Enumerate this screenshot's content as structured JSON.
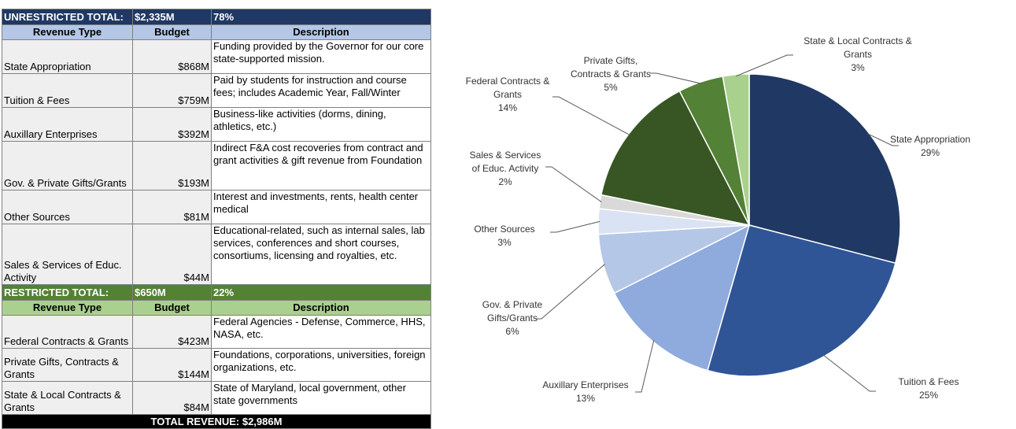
{
  "table": {
    "unrestricted": {
      "label": "UNRESTRICTED TOTAL:",
      "budget": "$2,335M",
      "pct": "78%"
    },
    "restricted": {
      "label": "RESTRICTED TOTAL:",
      "budget": "$650M",
      "pct": "22%"
    },
    "headers": {
      "type": "Revenue Type",
      "budget": "Budget",
      "desc": "Description"
    },
    "unrestricted_rows": [
      {
        "type": "State Appropriation",
        "budget": "$868M",
        "desc": "Funding provided by the Governor for our core state-supported mission."
      },
      {
        "type": "Tuition & Fees",
        "budget": "$759M",
        "desc": "Paid by students for instruction and course fees; includes Academic Year, Fall/Winter"
      },
      {
        "type": "Auxillary Enterprises",
        "budget": "$392M",
        "desc": "Business-like activities (dorms, dining, athletics, etc.)"
      },
      {
        "type": "Gov. & Private Gifts/Grants",
        "budget": "$193M",
        "desc": "Indirect F&A cost recoveries from contract and grant activities & gift revenue from Foundation"
      },
      {
        "type": "Other Sources",
        "budget": "$81M",
        "desc": "Interest and investments, rents, health center medical"
      },
      {
        "type": "Sales & Services of Educ. Activity",
        "budget": "$44M",
        "desc": "Educational-related, such as internal sales, lab services,  conferences and short courses, consortiums, licensing and royalties, etc."
      }
    ],
    "restricted_rows": [
      {
        "type": "Federal Contracts & Grants",
        "budget": "$423M",
        "desc": "Federal Agencies - Defense, Commerce, HHS, NASA, etc."
      },
      {
        "type": "Private Gifts, Contracts & Grants",
        "budget": "$144M",
        "desc": "Foundations, corporations, universities, foreign organizations, etc."
      },
      {
        "type": "State & Local Contracts & Grants",
        "budget": "$84M",
        "desc": "State of Maryland, local government, other state governments"
      }
    ],
    "total": "TOTAL REVENUE:  $2,986M"
  },
  "chart_data": {
    "type": "pie",
    "slices": [
      {
        "name": "State Appropriation",
        "value": 868,
        "pct": "29%",
        "color": "#203864"
      },
      {
        "name": "Tuition & Fees",
        "value": 759,
        "pct": "25%",
        "color": "#2f5597"
      },
      {
        "name": "Auxillary Enterprises",
        "value": 392,
        "pct": "13%",
        "color": "#8faadc"
      },
      {
        "name": "Gov. & Private Gifts/Grants",
        "value": 193,
        "pct": "6%",
        "color": "#b4c7e7"
      },
      {
        "name": "Other Sources",
        "value": 81,
        "pct": "3%",
        "color": "#dae3f3"
      },
      {
        "name": "Sales & Services of Educ. Activity",
        "value": 44,
        "pct": "2%",
        "color": "#d9d9d9"
      },
      {
        "name": "Federal Contracts & Grants",
        "value": 423,
        "pct": "14%",
        "color": "#375623"
      },
      {
        "name": "Private Gifts, Contracts & Grants",
        "value": 144,
        "pct": "5%",
        "color": "#538135"
      },
      {
        "name": "State & Local Contracts & Grants",
        "value": 84,
        "pct": "3%",
        "color": "#a9d18e"
      }
    ],
    "start": "12 o'clock",
    "direction": "clockwise",
    "legend": "none"
  }
}
